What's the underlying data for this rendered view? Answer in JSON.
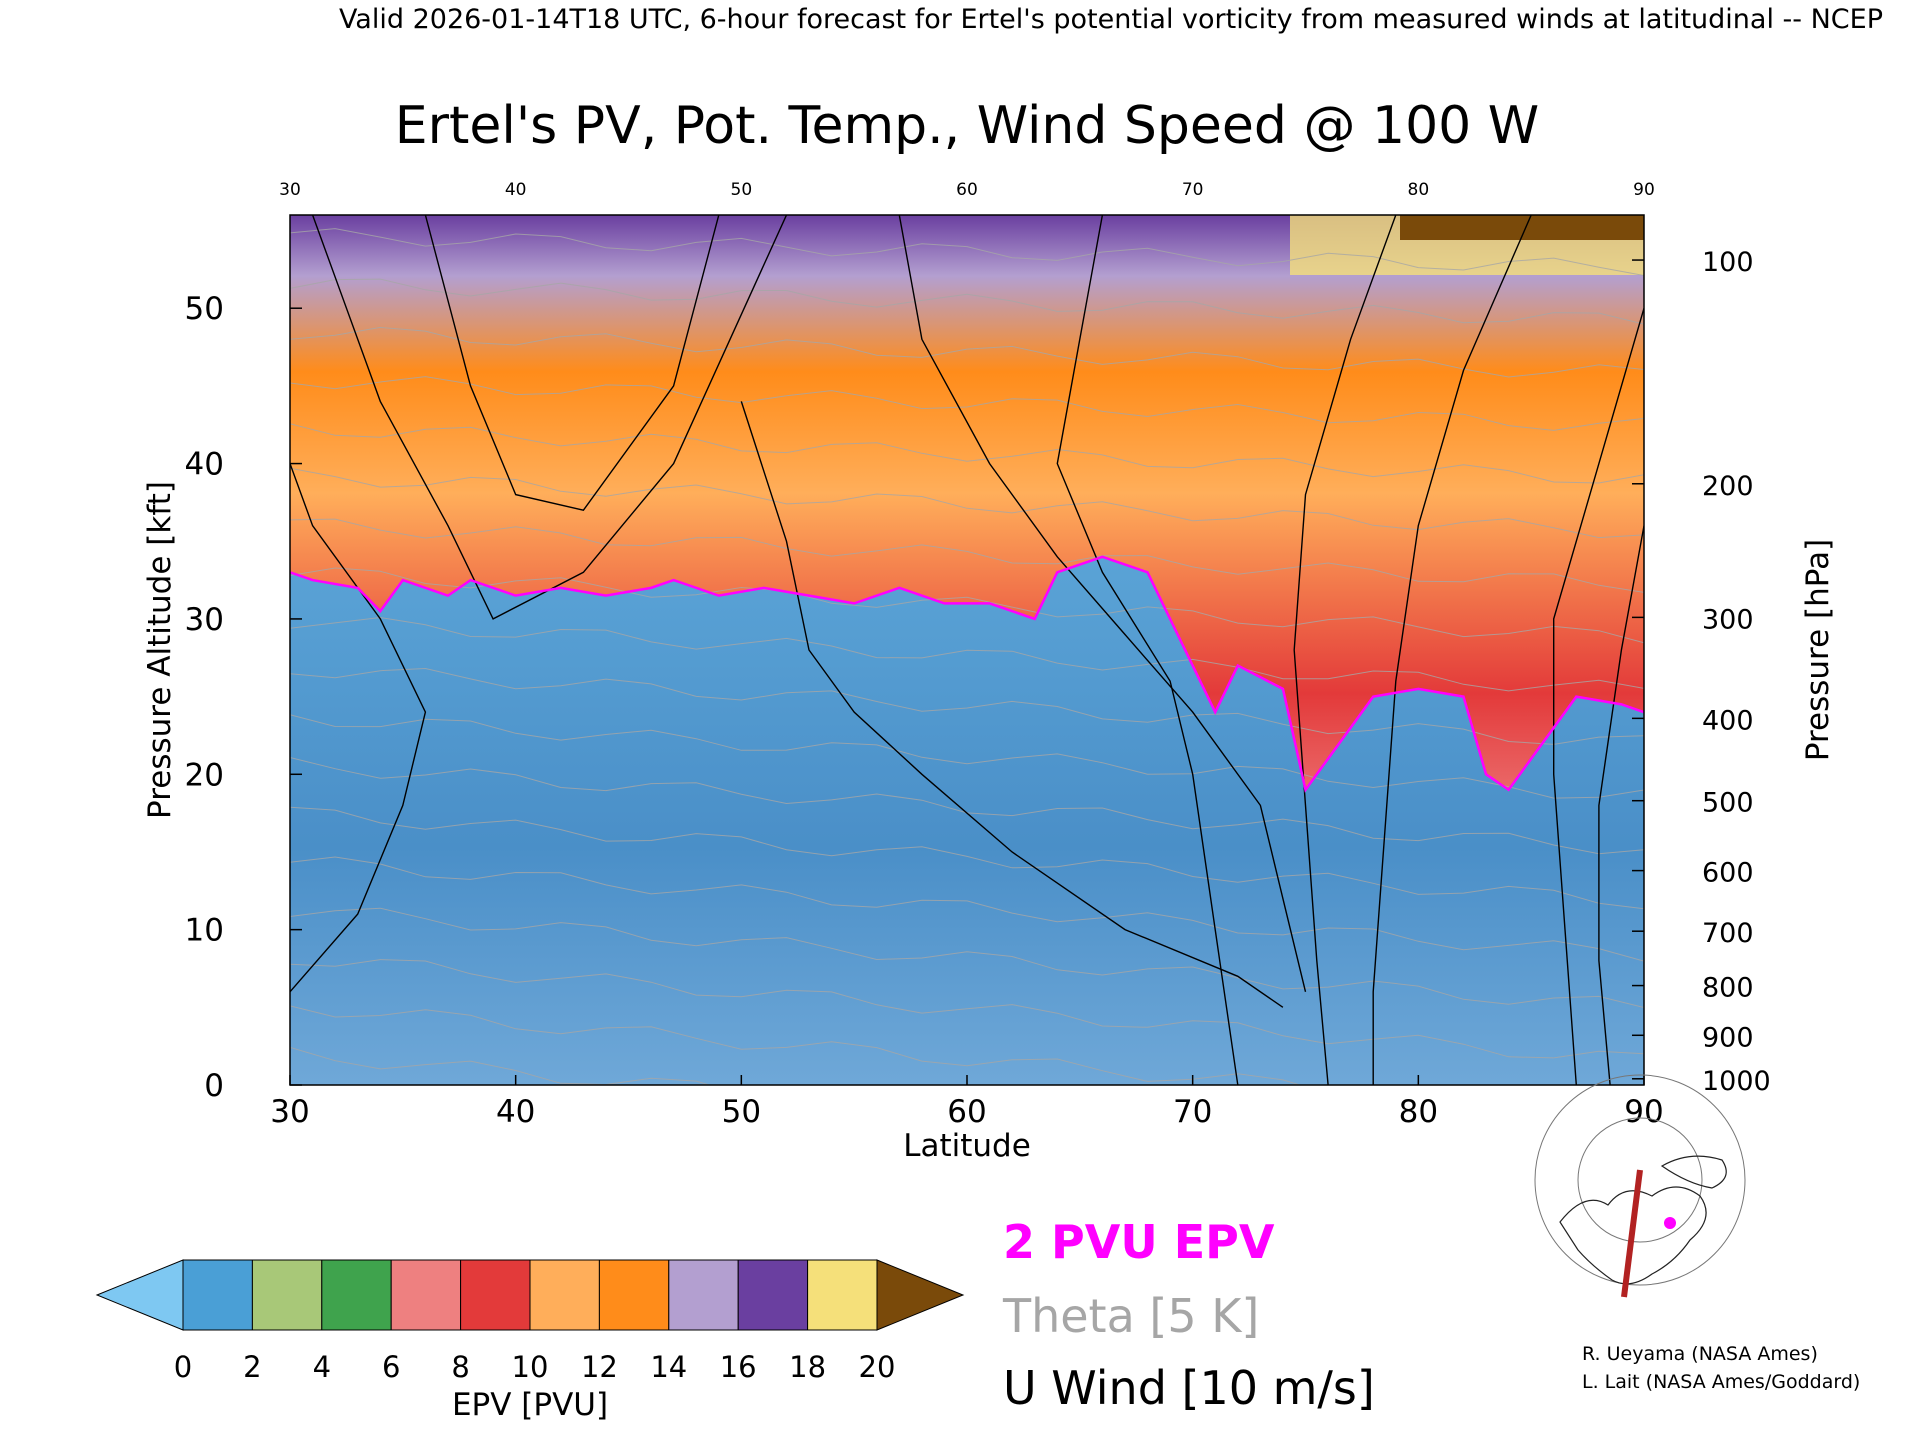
{
  "header": {
    "valid_line": "Valid 2026-01-14T18 UTC, 6-hour forecast for Ertel's potential vorticity from measured winds at latitudinal -- NCEP"
  },
  "chart_data": {
    "type": "heatmap",
    "title": "Ertel's PV, Pot. Temp., Wind Speed @ 100 W",
    "xlabel": "Latitude",
    "ylabel_left": "Pressure Altitude [kft]",
    "ylabel_right": "Pressure [hPa]",
    "xlim": [
      30,
      90
    ],
    "ylim": [
      0,
      56
    ],
    "x_ticks": [
      30,
      40,
      50,
      60,
      70,
      80,
      90
    ],
    "y_ticks": [
      0,
      10,
      20,
      30,
      40,
      50
    ],
    "pressure_ticks": [
      {
        "hPa": 100,
        "kft": 53.1
      },
      {
        "hPa": 200,
        "kft": 38.7
      },
      {
        "hPa": 300,
        "kft": 30.1
      },
      {
        "hPa": 400,
        "kft": 23.6
      },
      {
        "hPa": 500,
        "kft": 18.3
      },
      {
        "hPa": 600,
        "kft": 13.8
      },
      {
        "hPa": 700,
        "kft": 9.9
      },
      {
        "hPa": 800,
        "kft": 6.4
      },
      {
        "hPa": 900,
        "kft": 3.2
      },
      {
        "hPa": 1000,
        "kft": 0.4
      }
    ],
    "tropopause_2pvu_kft": [
      [
        30,
        33
      ],
      [
        31,
        32.5
      ],
      [
        33,
        32
      ],
      [
        34,
        30.5
      ],
      [
        35,
        32.5
      ],
      [
        37,
        31.5
      ],
      [
        38,
        32.5
      ],
      [
        40,
        31.5
      ],
      [
        42,
        32
      ],
      [
        44,
        31.5
      ],
      [
        46,
        32
      ],
      [
        47,
        32.5
      ],
      [
        49,
        31.5
      ],
      [
        51,
        32
      ],
      [
        53,
        31.5
      ],
      [
        55,
        31
      ],
      [
        57,
        32
      ],
      [
        59,
        31
      ],
      [
        61,
        31
      ],
      [
        63,
        30
      ],
      [
        64,
        33
      ],
      [
        66,
        34
      ],
      [
        68,
        33
      ],
      [
        69,
        30
      ],
      [
        70,
        27
      ],
      [
        71,
        24
      ],
      [
        72,
        27
      ],
      [
        74,
        25.5
      ],
      [
        75,
        19
      ],
      [
        76,
        21
      ],
      [
        78,
        25
      ],
      [
        80,
        25.5
      ],
      [
        82,
        25
      ],
      [
        83,
        20
      ],
      [
        84,
        19
      ],
      [
        85,
        21
      ],
      [
        87,
        25
      ],
      [
        89,
        24.5
      ],
      [
        90,
        24
      ]
    ],
    "colorbar": {
      "label": "EPV [PVU]",
      "tick_labels": [
        "0",
        "2",
        "4",
        "6",
        "8",
        "10",
        "12",
        "14",
        "16",
        "18",
        "20"
      ],
      "colors": [
        "#4a9fd6",
        "#a8c878",
        "#3fa34d",
        "#ee8080",
        "#e33a3a",
        "#ffae5a",
        "#ff8c1a",
        "#b39fd0",
        "#6a3fa0",
        "#f5e07a"
      ],
      "under_color": "#7ec8f2",
      "over_color": "#7a4a0a"
    },
    "legend": [
      {
        "label": "2 PVU EPV",
        "color": "#ff00ff"
      },
      {
        "label": "Theta [5 K]",
        "color": "#a6a6a6"
      },
      {
        "label": "U Wind [10 m/s]",
        "color": "#000000"
      }
    ]
  },
  "credits": [
    "R. Ueyama (NASA Ames)",
    "L. Lait (NASA Ames/Goddard)"
  ]
}
